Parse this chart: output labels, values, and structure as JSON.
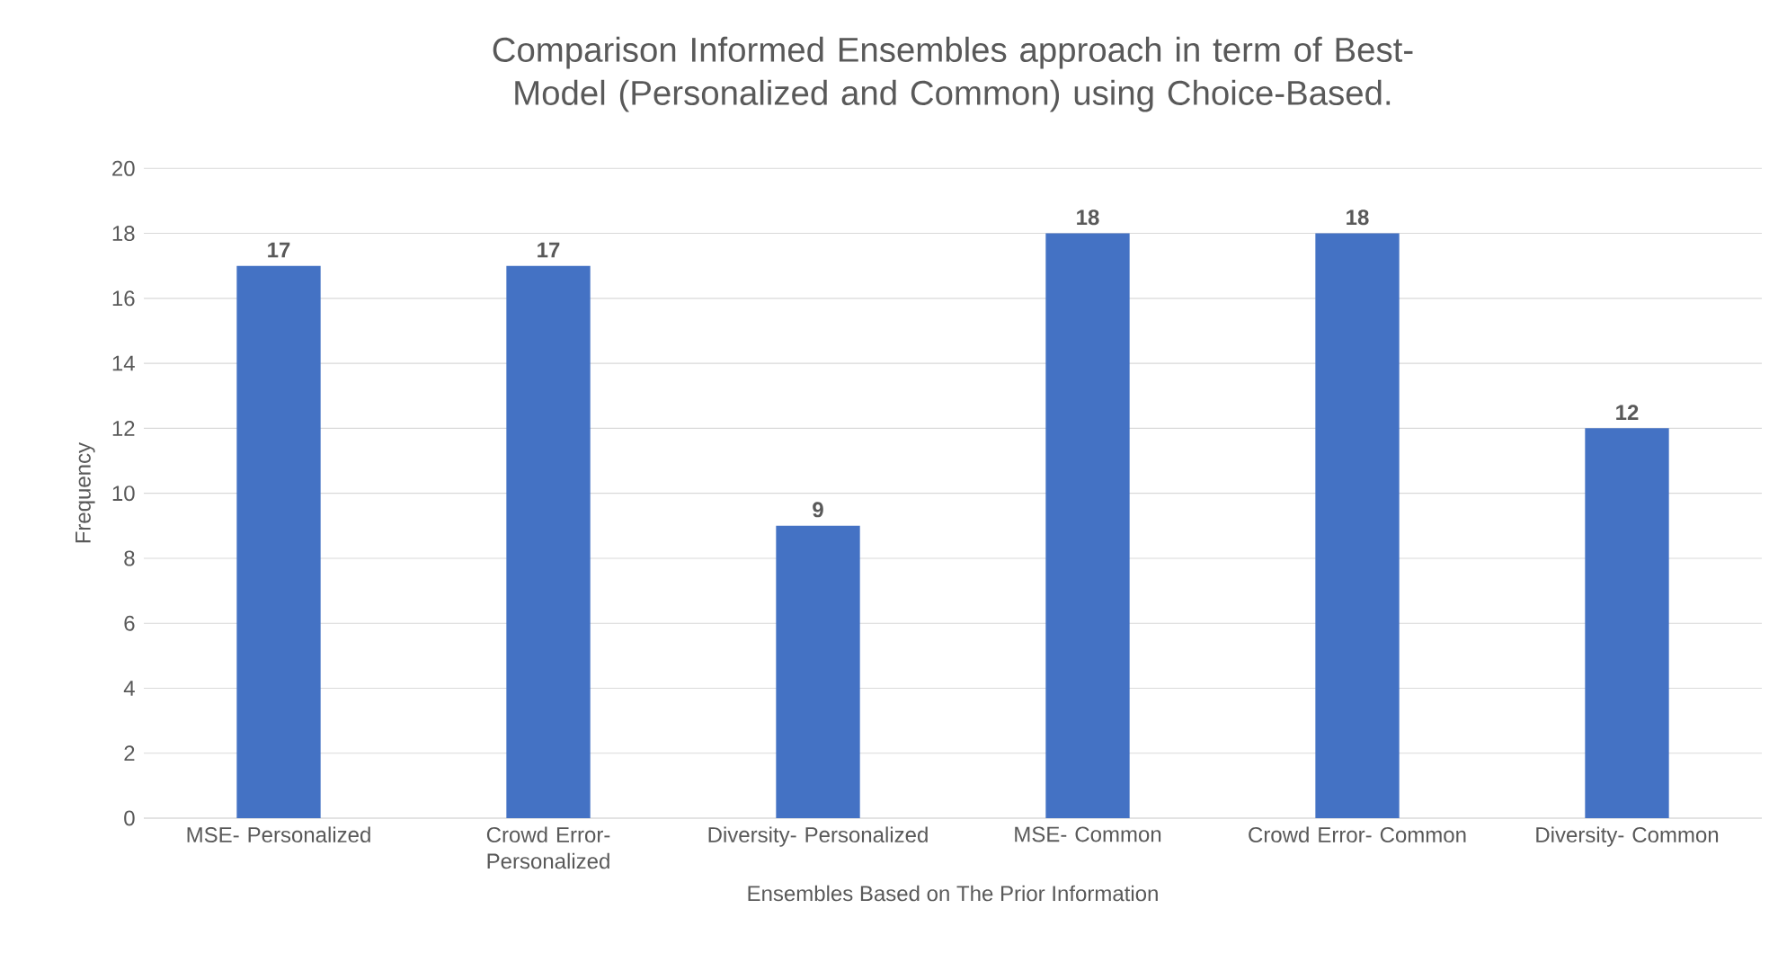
{
  "chart_data": {
    "type": "bar",
    "title": "Comparison Informed Ensembles approach in term of Best-Model (Personalized and Common) using Choice-Based.",
    "xlabel": "Ensembles Based on The Prior Information",
    "ylabel": "Frequency",
    "categories": [
      "MSE- Personalized",
      "Crowd Error- Personalized",
      "Diversity- Personalized",
      "MSE- Common",
      "Crowd Error- Common",
      "Diversity- Common"
    ],
    "values": [
      17,
      17,
      9,
      18,
      18,
      12
    ],
    "color": "#4472c4",
    "ylim": [
      0,
      20
    ],
    "yticks": [
      0,
      2,
      4,
      6,
      8,
      10,
      12,
      14,
      16,
      18,
      20
    ],
    "grid": "y",
    "data_labels": true
  }
}
